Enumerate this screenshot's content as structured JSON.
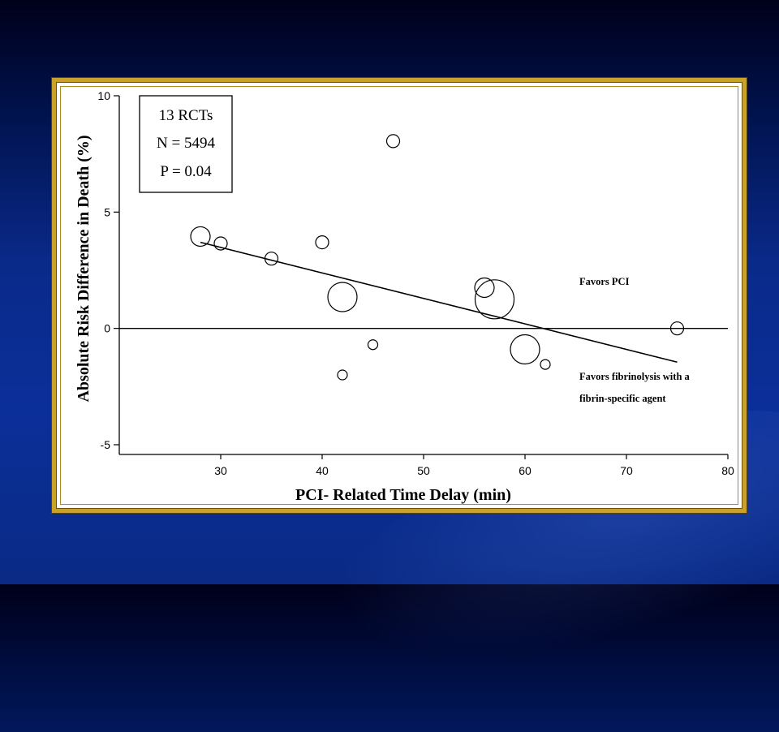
{
  "chart_data": {
    "type": "scatter",
    "xlabel": "PCI- Related Time Delay (min)",
    "ylabel": "Absolute Risk Difference in Death (%)",
    "xlim": [
      20,
      80
    ],
    "ylim": [
      -5,
      10
    ],
    "x_ticks": [
      30,
      40,
      50,
      60,
      70,
      80
    ],
    "y_ticks": [
      -5,
      0,
      5,
      10
    ],
    "reference_line_y": 0,
    "stats_box": [
      "13 RCTs",
      "N = 5494",
      "P = 0.04"
    ],
    "annotations": {
      "above": "Favors PCI",
      "below": [
        "Favors fibrinolysis with a",
        "fibrin-specific agent"
      ]
    },
    "regression_line": {
      "x": [
        28,
        75
      ],
      "y": [
        3.7,
        -1.45
      ]
    },
    "points": [
      {
        "x": 28,
        "y": 3.95,
        "size": "medium"
      },
      {
        "x": 30,
        "y": 3.65,
        "size": "small"
      },
      {
        "x": 35,
        "y": 3.0,
        "size": "small"
      },
      {
        "x": 40,
        "y": 3.7,
        "size": "small"
      },
      {
        "x": 42,
        "y": 1.35,
        "size": "large"
      },
      {
        "x": 42,
        "y": -2.0,
        "size": "tiny"
      },
      {
        "x": 45,
        "y": -0.7,
        "size": "tiny"
      },
      {
        "x": 47,
        "y": 8.05,
        "size": "small"
      },
      {
        "x": 56,
        "y": 1.75,
        "size": "medium"
      },
      {
        "x": 57,
        "y": 1.25,
        "size": "xlarge"
      },
      {
        "x": 60,
        "y": -0.9,
        "size": "large"
      },
      {
        "x": 62,
        "y": -1.55,
        "size": "tiny"
      },
      {
        "x": 75,
        "y": 0.0,
        "size": "small"
      }
    ],
    "grid": false
  },
  "bubble_radius": {
    "tiny": 6,
    "small": 8,
    "medium": 12,
    "large": 18,
    "xlarge": 24
  }
}
